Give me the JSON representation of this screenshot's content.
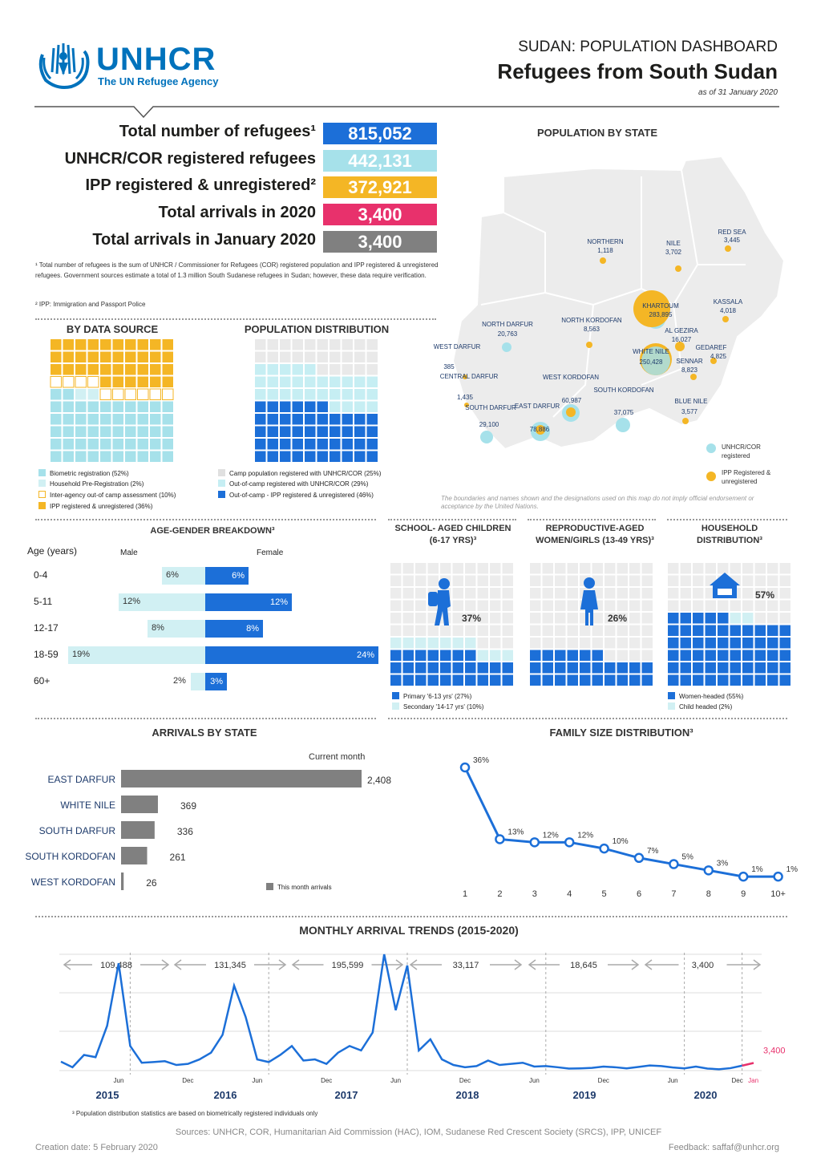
{
  "header": {
    "org_name": "UNHCR",
    "org_tagline": "The UN Refugee Agency",
    "dashboard_title": "SUDAN: POPULATION DASHBOARD",
    "main_title": "Refugees from South Sudan",
    "date": "as of 31 January 2020"
  },
  "colors": {
    "blue": "#1c6fd8",
    "light_blue": "#a6e1ea",
    "pale_blue": "#d1f0f3",
    "yellow": "#f4b625",
    "pink": "#e8316c",
    "gray": "#808080"
  },
  "stats": [
    {
      "label": "Total number of refugees¹",
      "value": "815,052",
      "color": "#1c6fd8"
    },
    {
      "label": "UNHCR/COR registered refugees",
      "value": "442,131",
      "color": "#a6e1ea"
    },
    {
      "label": "IPP registered & unregistered²",
      "value": "372,921",
      "color": "#f4b625"
    },
    {
      "label": "Total arrivals in 2020",
      "value": "3,400",
      "color": "#e8316c"
    },
    {
      "label": "Total arrivals in January 2020",
      "value": "3,400",
      "color": "#808080"
    }
  ],
  "footnotes": {
    "note1": "¹ Total number of refugees is the sum of UNHCR / Commissioner for Refugees (COR) registered population and IPP registered & unregistered refugees. Government sources estimate a total of 1.3 million South Sudanese refugees in Sudan; however, these data require verification.",
    "note2": "² IPP: Immigration and Passport Police",
    "note3": "³ Population distribution statistics are based on biometrically registered individuals only"
  },
  "sections": {
    "by_data_source": "BY DATA SOURCE",
    "population_distribution": "POPULATION DISTRIBUTION",
    "population_by_state": "POPULATION BY STATE",
    "age_gender": "AGE-GENDER BREAKDOWN³",
    "school_aged": "SCHOOL- AGED CHILDREN (6-17 YRS)³",
    "reproductive": "REPRODUCTIVE-AGED WOMEN/GIRLS (13-49 YRS)³",
    "household": "HOUSEHOLD DISTRIBUTION³",
    "arrivals_by_state": "ARRIVALS BY STATE",
    "family_size": "FAMILY SIZE DISTRIBUTION³",
    "monthly_trends": "MONTHLY ARRIVAL TRENDS (2015-2020)"
  },
  "legends": {
    "data_source": [
      {
        "label": "Biometric registration (52%)",
        "color": "#a6e1ea"
      },
      {
        "label": "Household Pre-Registration (2%)",
        "color": "#d1f0f3"
      },
      {
        "label": "Inter-agency out-of camp assessment (10%)",
        "color": "#fff8e0"
      },
      {
        "label": "IPP registered & unregistered (36%)",
        "color": "#f4b625"
      }
    ],
    "distribution": [
      {
        "label": "Camp population registered with UNHCR/COR (25%)",
        "color": "#e9e9e9"
      },
      {
        "label": "Out-of-camp registered with UNHCR/COR (29%)",
        "color": "#c6eef3"
      },
      {
        "label": "Out-of-camp - IPP registered & unregistered (46%)",
        "color": "#1c6fd8"
      }
    ],
    "school": [
      {
        "label": "Primary '6-13 yrs' (27%)",
        "color": "#1c6fd8"
      },
      {
        "label": "Secondary '14-17 yrs' (10%)",
        "color": "#d1f0f3"
      }
    ],
    "household": [
      {
        "label": "Women-headed (55%)",
        "color": "#1c6fd8"
      },
      {
        "label": "Child headed (2%)",
        "color": "#d1f0f3"
      }
    ],
    "map": [
      {
        "label": "UNHCR/COR registered",
        "color": "#a6e1ea"
      },
      {
        "label": "IPP Registered & unregistered",
        "color": "#f4b625"
      }
    ],
    "arrivals": "This month arrivals"
  },
  "pictograms": {
    "school_pct": "37%",
    "reproductive_pct": "26%",
    "household_pct": "57%"
  },
  "map": {
    "disclaimer": "The boundaries and names shown and the designations used on this map do not imply official endorsement or acceptance by the United Nations.",
    "states": [
      {
        "name": "NORTHERN",
        "value": "1,118"
      },
      {
        "name": "NILE",
        "value": "3,702"
      },
      {
        "name": "RED SEA",
        "value": "3,445"
      },
      {
        "name": "KASSALA",
        "value": "4,018"
      },
      {
        "name": "KHARTOUM",
        "value": "283,895"
      },
      {
        "name": "NORTH DARFUR",
        "value": "20,763"
      },
      {
        "name": "NORTH KORDOFAN",
        "value": "8,563"
      },
      {
        "name": "AL GEZIRA",
        "value": "16,027"
      },
      {
        "name": "GEDAREF",
        "value": "4,825"
      },
      {
        "name": "WHITE NILE",
        "value": "250,428"
      },
      {
        "name": "SENNAR",
        "value": "8,823"
      },
      {
        "name": "WEST DARFUR",
        "value": "385"
      },
      {
        "name": "CENTRAL DARFUR",
        "value": "1,435"
      },
      {
        "name": "WEST KORDOFAN",
        "value": "60,987"
      },
      {
        "name": "SOUTH KORDOFAN",
        "value": "37,075"
      },
      {
        "name": "BLUE NILE",
        "value": "3,577"
      },
      {
        "name": "SOUTH DARFUR",
        "value": "29,100"
      },
      {
        "name": "EAST DARFUR",
        "value": "78,886"
      }
    ]
  },
  "footer": {
    "sources": "Sources: UNHCR, COR, Humanitarian Aid Commission (HAC), IOM, Sudanese Red Crescent Society (SRCS), IPP, UNICEF",
    "creation": "Creation date: 5 February 2020",
    "feedback": "Feedback: saffaf@unhcr.org"
  },
  "chart_data": [
    {
      "type": "bar",
      "title": "AGE-GENDER BREAKDOWN³",
      "xlabel": "",
      "ylabel": "Age (years)",
      "categories": [
        "0-4",
        "5-11",
        "12-17",
        "18-59",
        "60+"
      ],
      "series": [
        {
          "name": "Male",
          "values": [
            6,
            12,
            8,
            19,
            2
          ]
        },
        {
          "name": "Female",
          "values": [
            6,
            12,
            8,
            24,
            3
          ]
        }
      ]
    },
    {
      "type": "bar",
      "title": "ARRIVALS BY STATE",
      "subtitle": "Current month",
      "categories": [
        "EAST DARFUR",
        "WHITE NILE",
        "SOUTH DARFUR",
        "SOUTH KORDOFAN",
        "WEST KORDOFAN"
      ],
      "values": [
        2408,
        369,
        336,
        261,
        26
      ]
    },
    {
      "type": "line",
      "title": "FAMILY SIZE DISTRIBUTION³",
      "categories": [
        "1",
        "2",
        "3",
        "4",
        "5",
        "6",
        "7",
        "8",
        "9",
        "10+"
      ],
      "values": [
        36,
        13,
        12,
        12,
        10,
        7,
        5,
        3,
        1,
        1
      ],
      "ylim": [
        0,
        40
      ]
    },
    {
      "type": "line",
      "title": "MONTHLY ARRIVAL TRENDS (2015-2020)",
      "x_tick_labels": [
        "Jun",
        "Dec",
        "Jun",
        "Dec",
        "Jun",
        "Dec",
        "Jun",
        "Dec",
        "Jun",
        "Dec",
        "Jan"
      ],
      "year_labels": [
        "2015",
        "2016",
        "2017",
        "2018",
        "2019",
        "2020"
      ],
      "annual_totals": [
        {
          "year": "2015",
          "total": "109,488"
        },
        {
          "year": "2016",
          "total": "131,345"
        },
        {
          "year": "2017",
          "total": "195,599"
        },
        {
          "year": "2018",
          "total": "33,117"
        },
        {
          "year": "2019",
          "total": "18,645"
        },
        {
          "year": "2020",
          "total": "3,400"
        }
      ],
      "last_value_label": "3,400",
      "values": [
        4000,
        1500,
        7000,
        6000,
        20000,
        48000,
        11000,
        3500,
        3800,
        4200,
        2500,
        3000,
        5000,
        8000,
        16000,
        38000,
        24000,
        5000,
        3800,
        7000,
        11000,
        4500,
        5000,
        3000,
        8000,
        11000,
        9000,
        17000,
        52000,
        27000,
        47000,
        9000,
        14000,
        5000,
        2500,
        1500,
        2000,
        4500,
        2500,
        3000,
        3500,
        1800,
        2000,
        1500,
        900,
        1000,
        1200,
        1800,
        1500,
        1000,
        1600,
        2300,
        2000,
        1400,
        1000,
        1800,
        900,
        600,
        1100,
        2200,
        3400
      ]
    }
  ]
}
